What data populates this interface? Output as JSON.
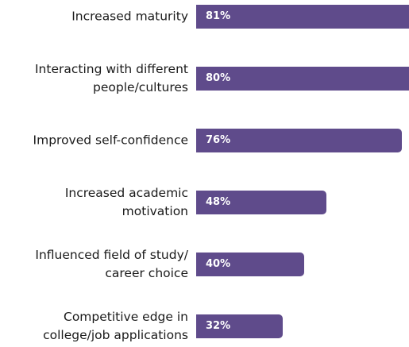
{
  "chart_data": {
    "type": "bar",
    "orientation": "horizontal",
    "categories": [
      "Increased maturity",
      "Interacting with different\npeople/cultures",
      "Improved self-confidence",
      "Increased academic\nmotivation",
      "Influenced field of study/\ncareer choice",
      "Competitive edge in\ncollege/job applications"
    ],
    "values": [
      81,
      80,
      76,
      48,
      40,
      32
    ],
    "value_labels": [
      "81%",
      "80%",
      "76%",
      "48%",
      "40%",
      "32%"
    ],
    "color": "#5f4b8b"
  }
}
